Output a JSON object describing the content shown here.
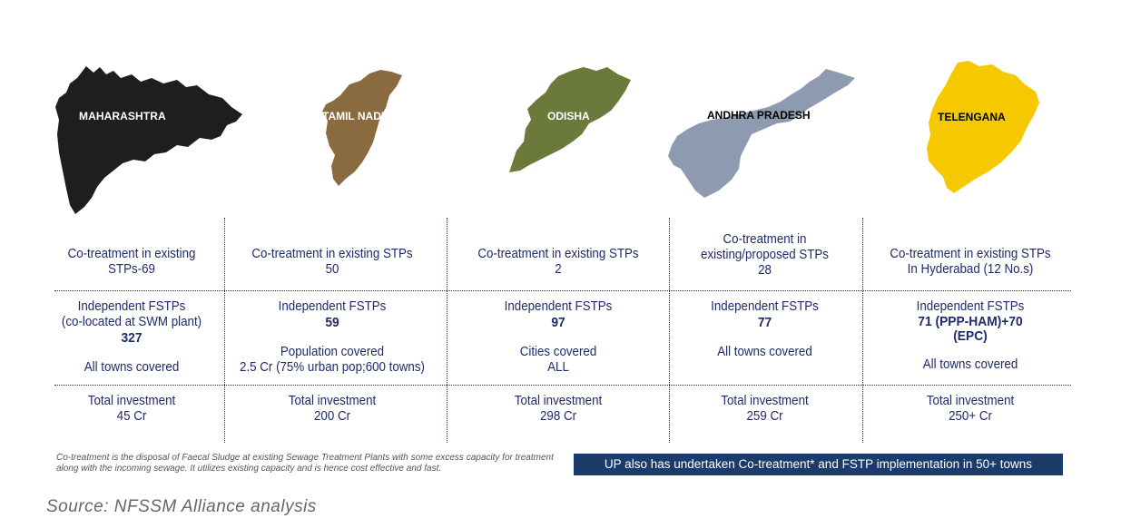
{
  "states": [
    {
      "name": "MAHARASHTRA",
      "color": "#1e1e1c",
      "label_color": "#ffffff",
      "row1": [
        "Co-treatment in existing",
        "STPs-69"
      ],
      "row2_lines": [
        "Independent FSTPs",
        "(co-located at SWM plant)"
      ],
      "row2_bold": "327",
      "row2_extra": [
        "All towns covered"
      ],
      "row3": [
        "Total investment",
        "45 Cr"
      ]
    },
    {
      "name": "TAMIL NADU",
      "color": "#8a6b3f",
      "label_color": "#ffffff",
      "row1": [
        "Co-treatment in existing STPs",
        "50"
      ],
      "row2_lines": [
        "Independent FSTPs"
      ],
      "row2_bold": "59",
      "row2_extra": [
        "Population covered",
        "2.5 Cr (75% urban pop;600 towns)"
      ],
      "row3": [
        "Total investment",
        "200 Cr"
      ]
    },
    {
      "name": "ODISHA",
      "color": "#6b7a3a",
      "label_color": "#ffffff",
      "row1": [
        "Co-treatment in existing STPs",
        "2"
      ],
      "row2_lines": [
        "Independent FSTPs"
      ],
      "row2_bold": "97",
      "row2_extra": [
        "Cities covered",
        "ALL"
      ],
      "row3": [
        "Total investment",
        "298 Cr"
      ]
    },
    {
      "name": "ANDHRA PRADESH",
      "color": "#8e9ab0",
      "label_color": "#000000",
      "row1": [
        "Co-treatment in",
        "existing/proposed STPs",
        "28"
      ],
      "row2_lines": [
        "Independent FSTPs"
      ],
      "row2_bold": "77",
      "row2_extra": [
        "All towns covered"
      ],
      "row3": [
        "Total investment",
        "259 Cr"
      ]
    },
    {
      "name": "TELENGANA",
      "color": "#f5c800",
      "label_color": "#000000",
      "row1": [
        "Co-treatment in existing STPs",
        "In Hyderabad (12 No.s)"
      ],
      "row2_lines": [
        "Independent FSTPs"
      ],
      "row2_bold": "71 (PPP-HAM)+70\n(EPC)",
      "row2_extra": [
        "All towns covered"
      ],
      "row3": [
        "Total investment",
        "250+ Cr"
      ]
    }
  ],
  "footnote": "Co-treatment is the disposal of Faecal Sludge at existing Sewage Treatment Plants with some excess capacity for treatment along with the incoming sewage. It utilizes existing capacity and is hence cost effective and fast.",
  "banner": "UP also has undertaken Co-treatment* and FSTP implementation in 50+ towns",
  "source": "Source: NFSSM Alliance analysis"
}
